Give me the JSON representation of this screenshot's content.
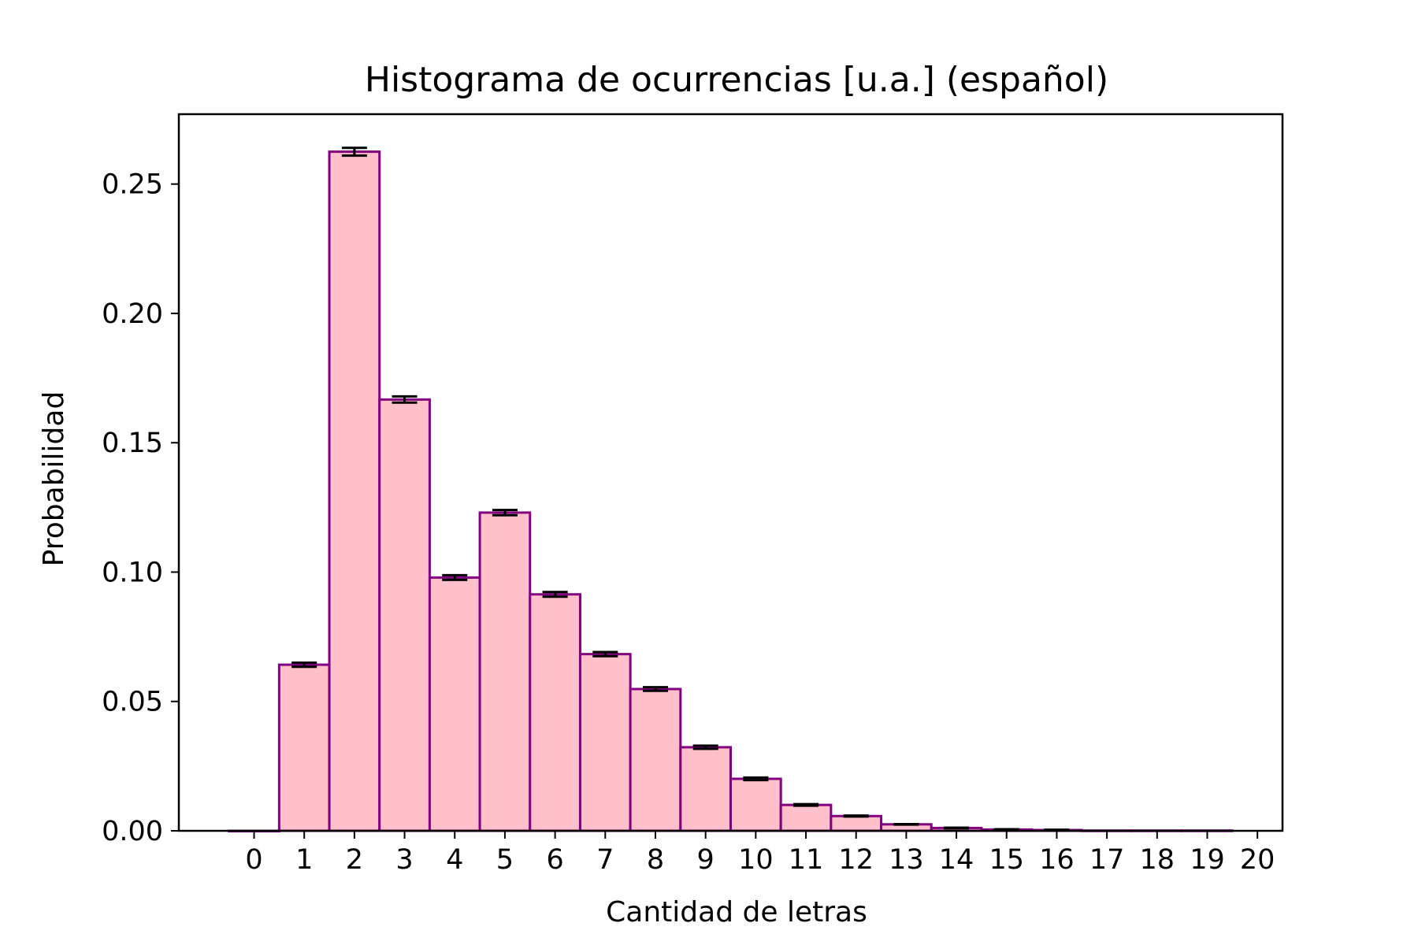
{
  "chart_data": {
    "type": "bar",
    "title": "Histograma de ocurrencias [u.a.] (español)",
    "xlabel": "Cantidad de letras",
    "ylabel": "Probabilidad",
    "x": [
      0,
      1,
      2,
      3,
      4,
      5,
      6,
      7,
      8,
      9,
      10,
      11,
      12,
      13,
      14,
      15,
      16,
      17,
      18,
      19
    ],
    "values": [
      0.0,
      0.0642,
      0.2625,
      0.1667,
      0.0979,
      0.123,
      0.0914,
      0.0683,
      0.0548,
      0.0323,
      0.0201,
      0.01,
      0.0057,
      0.0025,
      0.0011,
      0.0005,
      0.0003,
      0.0001,
      0.0001,
      0.0001
    ],
    "errors": [
      0.0,
      0.0008,
      0.0015,
      0.0012,
      0.0009,
      0.001,
      0.0009,
      0.0008,
      0.0007,
      0.0006,
      0.0005,
      0.0003,
      0.0002,
      0.0001,
      0.0001,
      0.0001,
      0.0001,
      0.0,
      0.0,
      0.0
    ],
    "xticks": [
      "0",
      "1",
      "2",
      "3",
      "4",
      "5",
      "6",
      "7",
      "8",
      "9",
      "10",
      "11",
      "12",
      "13",
      "14",
      "15",
      "16",
      "17",
      "18",
      "19",
      "20"
    ],
    "yticks": [
      "0.00",
      "0.05",
      "0.10",
      "0.15",
      "0.20",
      "0.25"
    ],
    "xlim": [
      -1.5,
      20.5
    ],
    "ylim": [
      0,
      0.277
    ],
    "grid": false,
    "bar_width": 1.0,
    "colors": {
      "bar_fill": "#ffc0cb",
      "bar_edge": "#800080",
      "errorbar": "#000000",
      "axes": "#000000"
    }
  }
}
